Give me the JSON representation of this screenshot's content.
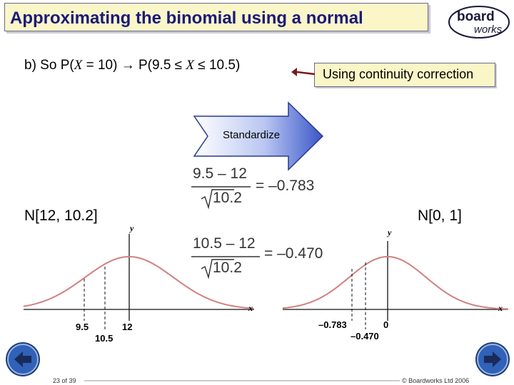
{
  "title": "Approximating the binomial using a normal",
  "logo": {
    "line1": "board",
    "line2": "works",
    "icon": "boardworks-logo"
  },
  "statement": {
    "prefix": "b)  So P(",
    "var1": "X",
    "mid": " = 10) → P(9.5 ≤ ",
    "var2": "X",
    "suffix": " ≤ 10.5)"
  },
  "continuity_label": "Using continuity correction",
  "standardize_label": "Standardize",
  "eq1": {
    "numerator": "9.5 – 12",
    "denominator": "10.2",
    "result": "= –0.783"
  },
  "eq2": {
    "numerator": "10.5 – 12",
    "denominator": "10.2",
    "result": "= –0.470"
  },
  "left_plot": {
    "label": "N[12, 10.2]",
    "y_label": "y",
    "x_label": "x",
    "ticks": [
      "9.5",
      "10.5",
      "12"
    ]
  },
  "right_plot": {
    "label": "N[0, 1]",
    "y_label": "y",
    "x_label": "x",
    "ticks": [
      "–0.783",
      "–0.470",
      "0"
    ]
  },
  "footer": {
    "page": "23 of 39",
    "copyright": "© Boardworks Ltd 2006",
    "prev_icon": "back-arrow-icon",
    "next_icon": "forward-arrow-icon"
  },
  "colors": {
    "title_text": "#1a1a7a",
    "title_bg": "#fbf6c8",
    "curve": "#d08080",
    "arrow": "#3a56c8",
    "nav": "#2f62b8"
  }
}
